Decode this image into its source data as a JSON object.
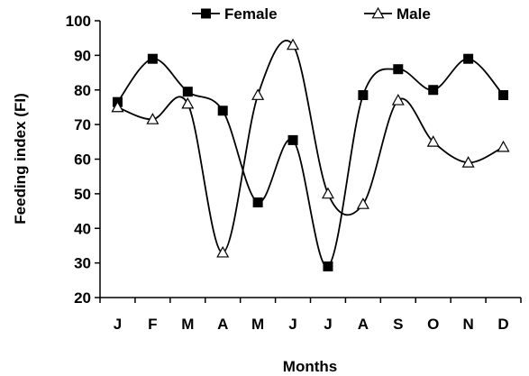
{
  "chart_data": {
    "type": "line",
    "title": "",
    "xlabel": "Months",
    "ylabel": "Feeding index (FI)",
    "categories": [
      "J",
      "F",
      "M",
      "A",
      "M",
      "J",
      "J",
      "A",
      "S",
      "O",
      "N",
      "D"
    ],
    "ylim": [
      20,
      100
    ],
    "yticks": [
      20,
      30,
      40,
      50,
      60,
      70,
      80,
      90,
      100
    ],
    "grid": false,
    "legend_position": "top",
    "smooth": true,
    "series": [
      {
        "name": "Female",
        "marker": "filled-square",
        "color": "#000000",
        "values": [
          76.5,
          89,
          79.5,
          74,
          47.5,
          65.5,
          29,
          78.5,
          86,
          80,
          89,
          78.5
        ]
      },
      {
        "name": "Male",
        "marker": "open-triangle",
        "color": "#000000",
        "values": [
          75,
          71.5,
          76,
          33,
          78.5,
          93,
          50,
          47,
          77,
          65,
          59,
          63.5
        ]
      }
    ]
  }
}
